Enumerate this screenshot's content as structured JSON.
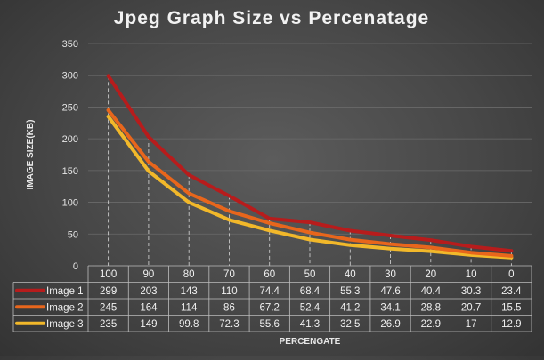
{
  "chart_data": {
    "type": "line",
    "title": "Jpeg Graph Size vs Percenatage",
    "xlabel": "PERCENGATE",
    "ylabel": "IMAGE SIZE(KB)",
    "ylim": [
      0,
      350
    ],
    "yticks": [
      "0",
      "50",
      "100",
      "150",
      "200",
      "250",
      "300",
      "350"
    ],
    "grid": "horizontal and vertical dashed",
    "legend": "data table below plot",
    "categories": [
      "100",
      "90",
      "80",
      "70",
      "60",
      "50",
      "40",
      "30",
      "20",
      "10",
      "0"
    ],
    "series": [
      {
        "name": "Image 1",
        "color": "#b71c1c",
        "values": [
          299,
          203,
          143,
          110,
          74.4,
          68.4,
          55.3,
          47.6,
          40.4,
          30.3,
          23.4
        ]
      },
      {
        "name": "Image 2",
        "color": "#e8661c",
        "values": [
          245,
          164,
          114,
          86,
          67.2,
          52.4,
          41.2,
          34.1,
          28.8,
          20.7,
          15.5
        ]
      },
      {
        "name": "Image 3",
        "color": "#f2b82a",
        "values": [
          235,
          149,
          99.8,
          72.3,
          55.6,
          41.3,
          32.5,
          26.9,
          22.9,
          17,
          12.9
        ]
      }
    ]
  }
}
